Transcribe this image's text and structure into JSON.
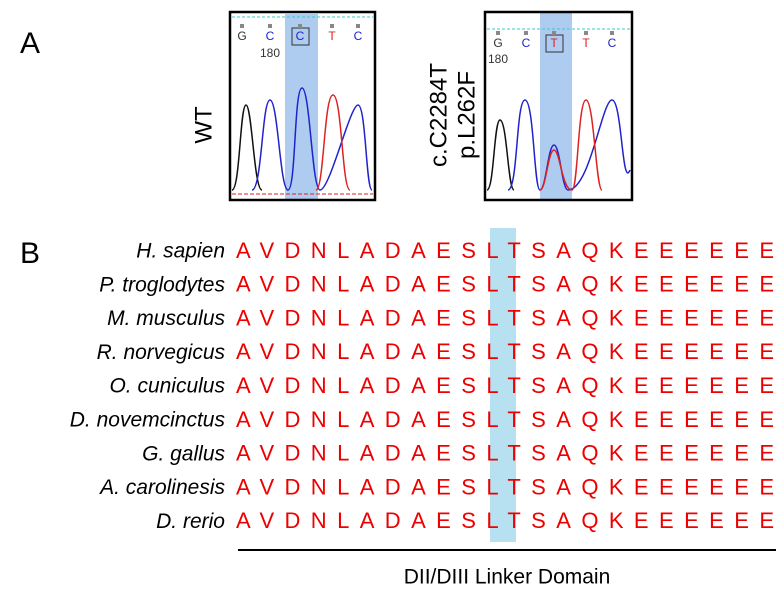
{
  "panel_a": {
    "label": "A",
    "wt": {
      "label": "WT",
      "bases": [
        "G",
        "C",
        "C",
        "T",
        "C"
      ],
      "position": "180"
    },
    "mutant": {
      "label_lines": [
        "c.C2284T",
        "p.L262F"
      ],
      "bases": [
        "G",
        "C",
        "T",
        "T",
        "C"
      ],
      "position": "180"
    }
  },
  "panel_b": {
    "label": "B",
    "rows": [
      {
        "species": "H. sapien",
        "sequence": "AVDNLADAESLTSAQKEEEEEE"
      },
      {
        "species": "P. troglodytes",
        "sequence": "AVDNLADAESLTSAQKEEEEEE"
      },
      {
        "species": "M. musculus",
        "sequence": "AVDNLADAESLTSAQKEEEEEE"
      },
      {
        "species": "R. norvegicus",
        "sequence": "AVDNLADAESLTSAQKEEEEEE"
      },
      {
        "species": "O. cuniculus",
        "sequence": "AVDNLADAESLTSAQKEEEEEE"
      },
      {
        "species": "D. novemcinctus",
        "sequence": "AVDNLADAESLTSAQKEEEEEE"
      },
      {
        "species": "G. gallus",
        "sequence": "AVDNLADAESLTSAQKEEEEEE"
      },
      {
        "species": "A. carolinesis",
        "sequence": "AVDNLADAESLTSAQKEEEEEE"
      },
      {
        "species": "D. rerio",
        "sequence": "AVDNLADAESLTSAQKEEEEEE"
      }
    ],
    "domain": "DII/DIII Linker Domain"
  }
}
